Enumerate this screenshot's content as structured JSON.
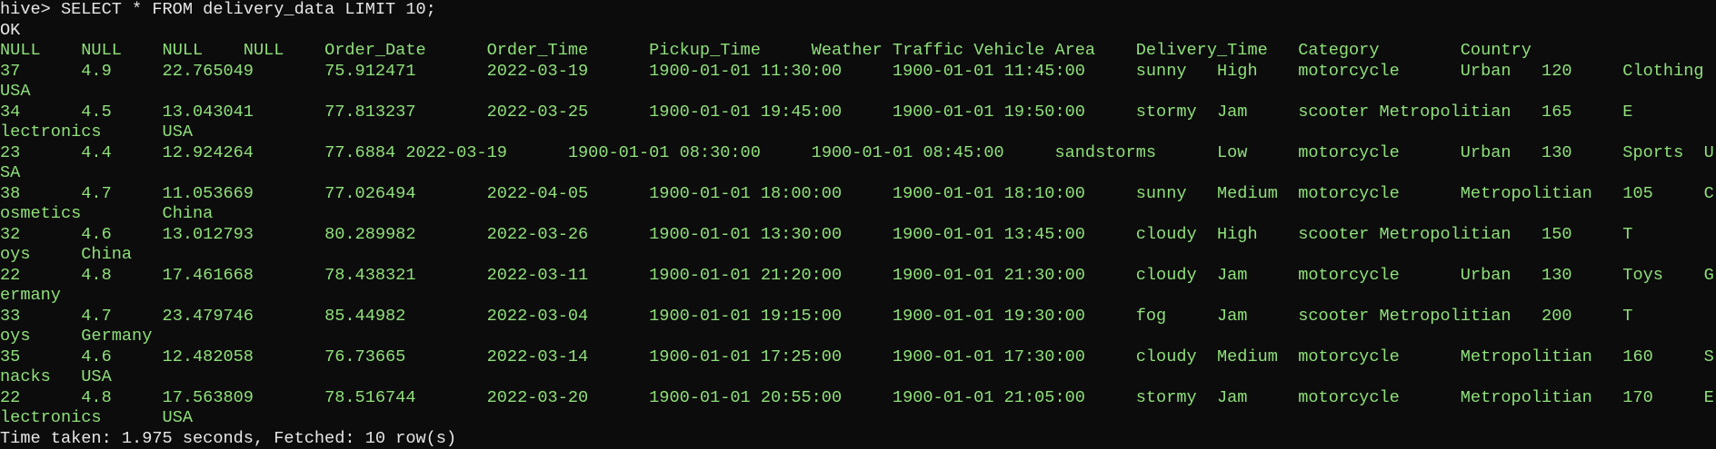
{
  "terminal": {
    "lines": [
      "hive> SELECT * FROM delivery_data LIMIT 10;",
      "OK",
      "NULL\tNULL\tNULL\tNULL\tOrder_Date\tOrder_Time\tPickup_Time\tWeather\tTraffic\tVehicle\tArea\tDelivery_Time\tCategory\tCountry",
      "37\t4.9\t22.765049\t75.912471\t2022-03-19\t1900-01-01 11:30:00\t1900-01-01 11:45:00\tsunny\tHigh\tmotorcycle\tUrban\t120\tClothing",
      "USA",
      "34\t4.5\t13.043041\t77.813237\t2022-03-25\t1900-01-01 19:45:00\t1900-01-01 19:50:00\tstormy\tJam\tscooter\tMetropolitian\t165\tE",
      "lectronics\tUSA",
      "23\t4.4\t12.924264\t77.6884\t2022-03-19\t1900-01-01 08:30:00\t1900-01-01 08:45:00\tsandstorms\tLow\tmotorcycle\tUrban\t130\tSports\tU",
      "SA",
      "38\t4.7\t11.053669\t77.026494\t2022-04-05\t1900-01-01 18:00:00\t1900-01-01 18:10:00\tsunny\tMedium\tmotorcycle\tMetropolitian\t105\tC",
      "osmetics\tChina",
      "32\t4.6\t13.012793\t80.289982\t2022-03-26\t1900-01-01 13:30:00\t1900-01-01 13:45:00\tcloudy\tHigh\tscooter\tMetropolitian\t150\tT",
      "oys\tChina",
      "22\t4.8\t17.461668\t78.438321\t2022-03-11\t1900-01-01 21:20:00\t1900-01-01 21:30:00\tcloudy\tJam\tmotorcycle\tUrban\t130\tToys\tG",
      "ermany",
      "33\t4.7\t23.479746\t85.44982\t2022-03-04\t1900-01-01 19:15:00\t1900-01-01 19:30:00\tfog\tJam\tscooter\tMetropolitian\t200\tT",
      "oys\tGermany",
      "35\t4.6\t12.482058\t76.73665\t2022-03-14\t1900-01-01 17:25:00\t1900-01-01 17:30:00\tcloudy\tMedium\tmotorcycle\tMetropolitian\t160\tS",
      "nacks\tUSA",
      "22\t4.8\t17.563809\t78.516744\t2022-03-20\t1900-01-01 20:55:00\t1900-01-01 21:05:00\tstormy\tJam\tmotorcycle\tMetropolitian\t170\tE",
      "lectronics\tUSA",
      "Time taken: 1.975 seconds, Fetched: 10 row(s)"
    ]
  }
}
